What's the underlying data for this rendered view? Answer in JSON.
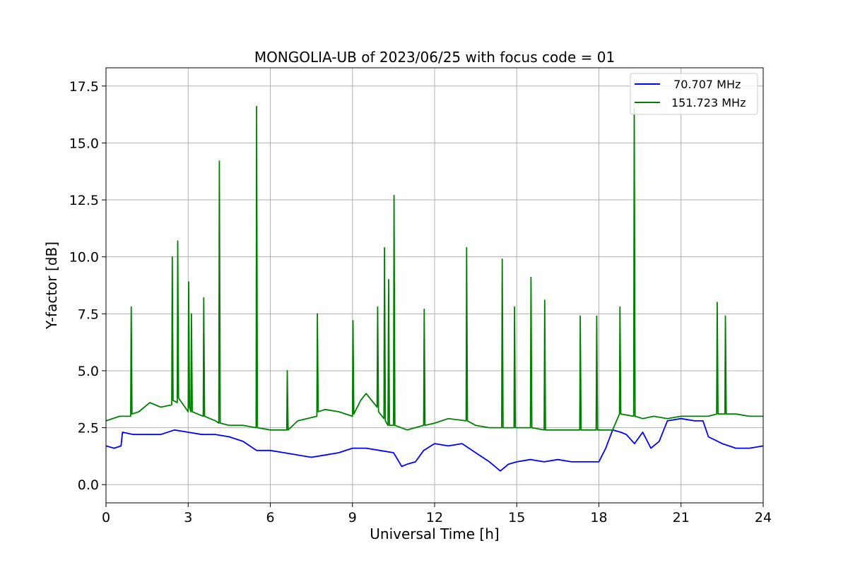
{
  "chart_data": {
    "type": "line",
    "title": "MONGOLIA-UB of 2023/06/25 with focus code = 01",
    "xlabel": "Universal Time [h]",
    "ylabel": "Y-factor [dB]",
    "xlim": [
      0,
      24
    ],
    "ylim": [
      -0.8,
      18.3
    ],
    "xticks": [
      0,
      3,
      6,
      9,
      12,
      15,
      18,
      21,
      24
    ],
    "xtick_labels": [
      "0",
      "3",
      "6",
      "9",
      "12",
      "15",
      "18",
      "21",
      "24"
    ],
    "yticks": [
      0,
      2.5,
      5,
      7.5,
      10,
      12.5,
      15,
      17.5
    ],
    "ytick_labels": [
      "0.0",
      "2.5",
      "5.0",
      "7.5",
      "10.0",
      "12.5",
      "15.0",
      "17.5"
    ],
    "grid": true,
    "legend_position": "top-right",
    "series": [
      {
        "name": " 70.707 MHz",
        "color": "#0000ff",
        "x": [
          0,
          0.3,
          0.55,
          0.6,
          1,
          1.5,
          2,
          2.5,
          3,
          3.5,
          4,
          4.5,
          5,
          5.5,
          6,
          6.5,
          7,
          7.5,
          8,
          8.5,
          9,
          9.5,
          10,
          10.5,
          10.8,
          11,
          11.3,
          11.6,
          12,
          12.5,
          13,
          13.5,
          14,
          14.4,
          14.7,
          15,
          15.5,
          16,
          16.5,
          17,
          17.5,
          18,
          18.25,
          18.5,
          18.8,
          19,
          19.3,
          19.6,
          19.9,
          20.2,
          20.5,
          21,
          21.5,
          21.8,
          22,
          22.5,
          23,
          23.5,
          24
        ],
        "y": [
          1.7,
          1.6,
          1.7,
          2.3,
          2.2,
          2.2,
          2.2,
          2.4,
          2.3,
          2.2,
          2.2,
          2.1,
          1.9,
          1.5,
          1.5,
          1.4,
          1.3,
          1.2,
          1.3,
          1.4,
          1.6,
          1.6,
          1.5,
          1.4,
          0.8,
          0.9,
          1.0,
          1.5,
          1.8,
          1.7,
          1.8,
          1.4,
          1.0,
          0.6,
          0.9,
          1.0,
          1.1,
          1.0,
          1.1,
          1.0,
          1.0,
          1.0,
          1.6,
          2.4,
          2.3,
          2.2,
          1.8,
          2.3,
          1.6,
          1.9,
          2.8,
          2.9,
          2.8,
          2.8,
          2.1,
          1.8,
          1.6,
          1.6,
          1.7
        ]
      },
      {
        "name": "151.723 MHz",
        "color": "#008000",
        "x": [
          0,
          0.5,
          0.9,
          0.92,
          0.95,
          1.2,
          1.6,
          2.0,
          2.4,
          2.42,
          2.45,
          2.6,
          2.62,
          2.65,
          3.0,
          3.02,
          3.05,
          3.1,
          3.12,
          3.15,
          3.55,
          3.57,
          3.6,
          4.0,
          4.12,
          4.14,
          4.17,
          4.5,
          5.0,
          5.48,
          5.5,
          5.53,
          6.0,
          6.6,
          6.62,
          6.65,
          7.0,
          7.7,
          7.72,
          7.75,
          8.0,
          8.5,
          9.0,
          9.02,
          9.05,
          9.3,
          9.5,
          9.9,
          9.92,
          9.95,
          10.15,
          10.17,
          10.2,
          10.3,
          10.32,
          10.35,
          10.5,
          10.52,
          10.55,
          11.0,
          11.6,
          11.62,
          11.65,
          12.0,
          12.5,
          13.15,
          13.17,
          13.2,
          13.5,
          14.0,
          14.45,
          14.47,
          14.5,
          14.9,
          14.92,
          14.95,
          15.5,
          15.52,
          15.55,
          16.0,
          16.02,
          16.05,
          16.5,
          17.0,
          17.3,
          17.32,
          17.35,
          17.9,
          17.92,
          17.95,
          18.2,
          18.5,
          18.75,
          18.77,
          18.8,
          19.27,
          19.29,
          19.32,
          19.6,
          20.0,
          20.5,
          21.0,
          21.5,
          22.0,
          22.3,
          22.32,
          22.35,
          22.6,
          22.62,
          22.65,
          23.0,
          23.5,
          23.9,
          24
        ],
        "y": [
          2.8,
          3.0,
          3.0,
          7.8,
          3.1,
          3.2,
          3.6,
          3.4,
          3.5,
          10.0,
          3.7,
          3.6,
          10.7,
          3.8,
          3.2,
          8.9,
          3.4,
          3.2,
          7.5,
          3.2,
          3.0,
          8.2,
          3.0,
          2.8,
          2.7,
          14.2,
          2.7,
          2.6,
          2.6,
          2.5,
          16.6,
          2.5,
          2.4,
          2.4,
          5.0,
          2.4,
          2.8,
          3.0,
          7.5,
          3.2,
          3.3,
          3.2,
          3.0,
          7.2,
          3.1,
          3.7,
          4.0,
          3.4,
          7.8,
          3.2,
          2.9,
          10.4,
          2.8,
          2.6,
          9.0,
          2.6,
          2.6,
          12.7,
          2.6,
          2.4,
          2.6,
          7.7,
          2.6,
          2.7,
          2.9,
          2.8,
          10.4,
          2.8,
          2.6,
          2.5,
          2.5,
          9.9,
          2.5,
          2.5,
          7.8,
          2.5,
          2.5,
          9.1,
          2.5,
          2.4,
          8.1,
          2.4,
          2.4,
          2.4,
          2.4,
          7.4,
          2.4,
          2.4,
          7.4,
          2.4,
          2.4,
          2.4,
          3.1,
          7.8,
          3.1,
          3.0,
          16.5,
          3.0,
          2.9,
          3.0,
          2.9,
          3.0,
          3.0,
          3.0,
          3.1,
          8.0,
          3.1,
          3.1,
          7.4,
          3.1,
          3.1,
          3.0,
          3.0,
          3.0
        ]
      }
    ]
  }
}
